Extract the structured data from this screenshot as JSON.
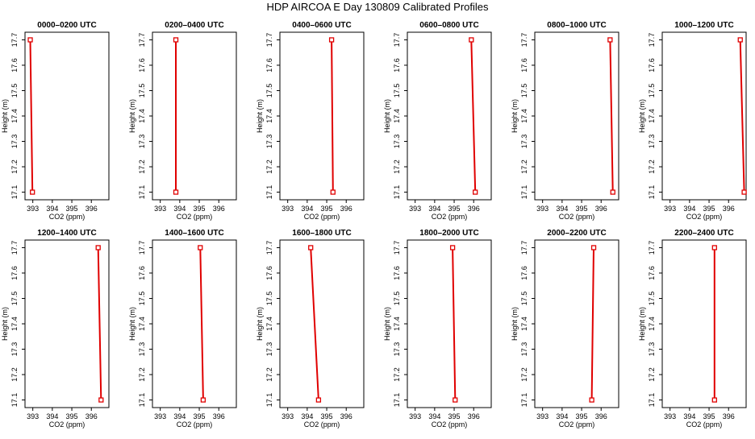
{
  "figure": {
    "title": "HDP AIRCOA E  Day 130809  Calibrated Profiles"
  },
  "style": {
    "line_color": "#e00000",
    "marker_color": "#e00000",
    "axis_color": "#000000"
  },
  "chart_data": [
    {
      "type": "line",
      "title": "0000–0200 UTC",
      "xlabel": "CO2 (ppm)",
      "ylabel": "Height (m)",
      "xlim": [
        392.6,
        396.9
      ],
      "ylim": [
        17.07,
        17.73
      ],
      "xticks": [
        393,
        394,
        395,
        396
      ],
      "yticks": [
        17.1,
        17.2,
        17.3,
        17.4,
        17.5,
        17.6,
        17.7
      ],
      "series": [
        {
          "points": [
            {
              "x": 392.87,
              "y": 17.7
            },
            {
              "x": 392.98,
              "y": 17.1
            }
          ]
        }
      ]
    },
    {
      "type": "line",
      "title": "0200–0400 UTC",
      "xlabel": "CO2 (ppm)",
      "ylabel": "Height (m)",
      "xlim": [
        392.6,
        396.9
      ],
      "ylim": [
        17.07,
        17.73
      ],
      "xticks": [
        393,
        394,
        395,
        396
      ],
      "yticks": [
        17.1,
        17.2,
        17.3,
        17.4,
        17.5,
        17.6,
        17.7
      ],
      "series": [
        {
          "points": [
            {
              "x": 393.8,
              "y": 17.7
            },
            {
              "x": 393.8,
              "y": 17.1
            }
          ]
        }
      ]
    },
    {
      "type": "line",
      "title": "0400–0600 UTC",
      "xlabel": "CO2 (ppm)",
      "ylabel": "Height (m)",
      "xlim": [
        392.6,
        396.9
      ],
      "ylim": [
        17.07,
        17.73
      ],
      "xticks": [
        393,
        394,
        395,
        396
      ],
      "yticks": [
        17.1,
        17.2,
        17.3,
        17.4,
        17.5,
        17.6,
        17.7
      ],
      "series": [
        {
          "points": [
            {
              "x": 395.25,
              "y": 17.7
            },
            {
              "x": 395.32,
              "y": 17.1
            }
          ]
        }
      ]
    },
    {
      "type": "line",
      "title": "0600–0800 UTC",
      "xlabel": "CO2 (ppm)",
      "ylabel": "Height (m)",
      "xlim": [
        392.6,
        396.9
      ],
      "ylim": [
        17.07,
        17.73
      ],
      "xticks": [
        393,
        394,
        395,
        396
      ],
      "yticks": [
        17.1,
        17.2,
        17.3,
        17.4,
        17.5,
        17.6,
        17.7
      ],
      "series": [
        {
          "points": [
            {
              "x": 395.88,
              "y": 17.7
            },
            {
              "x": 396.08,
              "y": 17.1
            }
          ]
        }
      ]
    },
    {
      "type": "line",
      "title": "0800–1000 UTC",
      "xlabel": "CO2 (ppm)",
      "ylabel": "Height (m)",
      "xlim": [
        392.6,
        396.9
      ],
      "ylim": [
        17.07,
        17.73
      ],
      "xticks": [
        393,
        394,
        395,
        396
      ],
      "yticks": [
        17.1,
        17.2,
        17.3,
        17.4,
        17.5,
        17.6,
        17.7
      ],
      "series": [
        {
          "points": [
            {
              "x": 396.46,
              "y": 17.7
            },
            {
              "x": 396.6,
              "y": 17.1
            }
          ]
        }
      ]
    },
    {
      "type": "line",
      "title": "1000–1200 UTC",
      "xlabel": "CO2 (ppm)",
      "ylabel": "Height (m)",
      "xlim": [
        392.6,
        396.9
      ],
      "ylim": [
        17.07,
        17.73
      ],
      "xticks": [
        393,
        394,
        395,
        396
      ],
      "yticks": [
        17.1,
        17.2,
        17.3,
        17.4,
        17.5,
        17.6,
        17.7
      ],
      "series": [
        {
          "points": [
            {
              "x": 396.6,
              "y": 17.7
            },
            {
              "x": 396.8,
              "y": 17.1
            }
          ]
        }
      ]
    },
    {
      "type": "line",
      "title": "1200–1400 UTC",
      "xlabel": "CO2 (ppm)",
      "ylabel": "Height (m)",
      "xlim": [
        392.6,
        396.9
      ],
      "ylim": [
        17.07,
        17.73
      ],
      "xticks": [
        393,
        394,
        395,
        396
      ],
      "yticks": [
        17.1,
        17.2,
        17.3,
        17.4,
        17.5,
        17.6,
        17.7
      ],
      "series": [
        {
          "points": [
            {
              "x": 396.35,
              "y": 17.7
            },
            {
              "x": 396.5,
              "y": 17.1
            }
          ]
        }
      ]
    },
    {
      "type": "line",
      "title": "1400–1600 UTC",
      "xlabel": "CO2 (ppm)",
      "ylabel": "Height (m)",
      "xlim": [
        392.6,
        396.9
      ],
      "ylim": [
        17.07,
        17.73
      ],
      "xticks": [
        393,
        394,
        395,
        396
      ],
      "yticks": [
        17.1,
        17.2,
        17.3,
        17.4,
        17.5,
        17.6,
        17.7
      ],
      "series": [
        {
          "points": [
            {
              "x": 395.05,
              "y": 17.7
            },
            {
              "x": 395.2,
              "y": 17.1
            }
          ]
        }
      ]
    },
    {
      "type": "line",
      "title": "1600–1800 UTC",
      "xlabel": "CO2 (ppm)",
      "ylabel": "Height (m)",
      "xlim": [
        392.6,
        396.9
      ],
      "ylim": [
        17.07,
        17.73
      ],
      "xticks": [
        393,
        394,
        395,
        396
      ],
      "yticks": [
        17.1,
        17.2,
        17.3,
        17.4,
        17.5,
        17.6,
        17.7
      ],
      "series": [
        {
          "points": [
            {
              "x": 394.18,
              "y": 17.7
            },
            {
              "x": 394.58,
              "y": 17.1
            }
          ]
        }
      ]
    },
    {
      "type": "line",
      "title": "1800–2000 UTC",
      "xlabel": "CO2 (ppm)",
      "ylabel": "Height (m)",
      "xlim": [
        392.6,
        396.9
      ],
      "ylim": [
        17.07,
        17.73
      ],
      "xticks": [
        393,
        394,
        395,
        396
      ],
      "yticks": [
        17.1,
        17.2,
        17.3,
        17.4,
        17.5,
        17.6,
        17.7
      ],
      "series": [
        {
          "points": [
            {
              "x": 394.92,
              "y": 17.7
            },
            {
              "x": 395.05,
              "y": 17.1
            }
          ]
        }
      ]
    },
    {
      "type": "line",
      "title": "2000–2200 UTC",
      "xlabel": "CO2 (ppm)",
      "ylabel": "Height (m)",
      "xlim": [
        392.6,
        396.9
      ],
      "ylim": [
        17.07,
        17.73
      ],
      "xticks": [
        393,
        394,
        395,
        396
      ],
      "yticks": [
        17.1,
        17.2,
        17.3,
        17.4,
        17.5,
        17.6,
        17.7
      ],
      "series": [
        {
          "points": [
            {
              "x": 395.62,
              "y": 17.7
            },
            {
              "x": 395.52,
              "y": 17.1
            }
          ]
        }
      ]
    },
    {
      "type": "line",
      "title": "2200–2400 UTC",
      "xlabel": "CO2 (ppm)",
      "ylabel": "Height (m)",
      "xlim": [
        392.6,
        396.9
      ],
      "ylim": [
        17.07,
        17.73
      ],
      "xticks": [
        393,
        394,
        395,
        396
      ],
      "yticks": [
        17.1,
        17.2,
        17.3,
        17.4,
        17.5,
        17.6,
        17.7
      ],
      "series": [
        {
          "points": [
            {
              "x": 395.28,
              "y": 17.7
            },
            {
              "x": 395.28,
              "y": 17.1
            }
          ]
        }
      ]
    }
  ]
}
